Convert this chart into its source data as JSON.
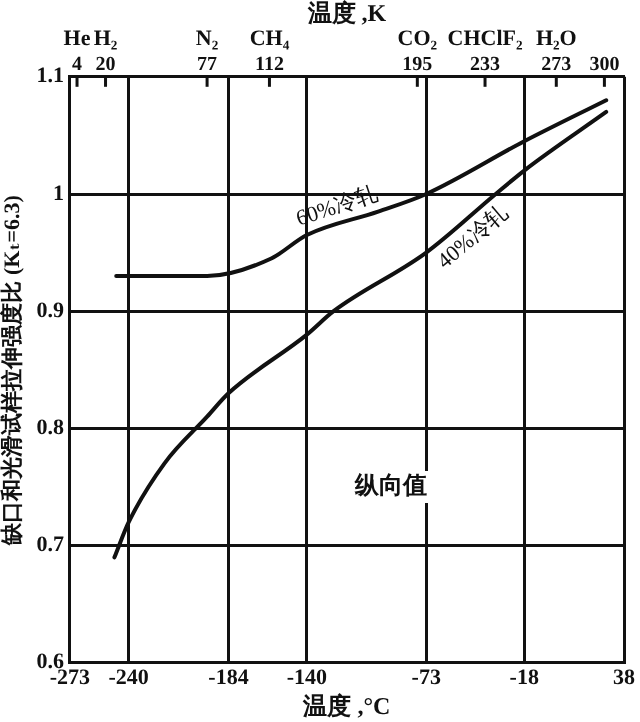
{
  "chart_data": {
    "type": "line",
    "xlabel": "温度 ,°C",
    "x2label": "温度 ,K",
    "ylabel": "缺口和光滑试样拉伸强度比 (Kₜ=6.3)",
    "xlim": [
      -273,
      38
    ],
    "xticks": [
      -273,
      -240,
      -184,
      -140,
      -73,
      -18,
      38
    ],
    "x2lim": [
      0,
      311
    ],
    "x2ticks": [
      4,
      20,
      77,
      112,
      195,
      233,
      273,
      300
    ],
    "ylim": [
      0.6,
      1.1
    ],
    "yticks": [
      0.6,
      0.7,
      0.8,
      0.9,
      1.0,
      1.1
    ],
    "grid": true,
    "legend": false,
    "marker": "none",
    "series": [
      {
        "name": "60%冷轧",
        "color": "#111111",
        "x": [
          -247,
          -220,
          -196,
          -160,
          -140,
          -100,
          -73,
          -18,
          28
        ],
        "values": [
          0.93,
          0.93,
          0.93,
          0.945,
          0.965,
          0.985,
          1.0,
          1.045,
          1.08
        ]
      },
      {
        "name": "40%冷轧",
        "color": "#111111",
        "x": [
          -248,
          -240,
          -220,
          -196,
          -184,
          -140,
          -125,
          -73,
          -34,
          -18,
          28
        ],
        "values": [
          0.69,
          0.72,
          0.77,
          0.81,
          0.83,
          0.88,
          0.9,
          0.95,
          1.0,
          1.02,
          1.07
        ]
      }
    ],
    "annotations": [
      "纵向值",
      "He",
      "H₂",
      "N₂",
      "CH₄",
      "CO₂",
      "CHClF₂",
      "H₂O"
    ]
  }
}
